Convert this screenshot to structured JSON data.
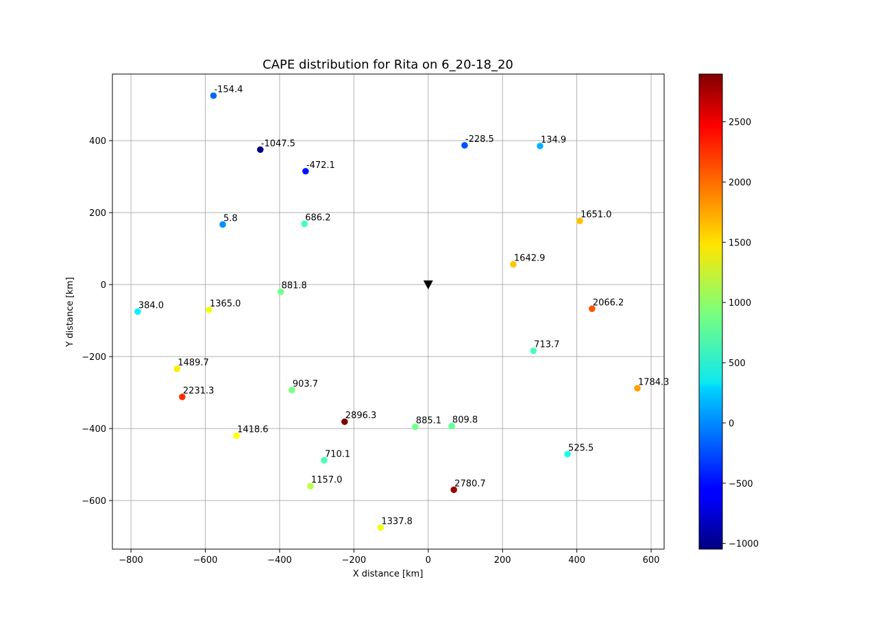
{
  "chart_data": {
    "type": "scatter",
    "title": "CAPE distribution for Rita on 6_20-18_20",
    "xlabel": "X distance [km]",
    "ylabel": "Y distance [km]",
    "xlim": [
      -850,
      635
    ],
    "ylim": [
      -735,
      585
    ],
    "xticks": [
      -800,
      -600,
      -400,
      -200,
      0,
      200,
      400,
      600
    ],
    "yticks": [
      -600,
      -400,
      -200,
      0,
      200,
      400
    ],
    "grid": true,
    "colormap": "jet",
    "colorbar": {
      "min": -1047.5,
      "max": 2896.3,
      "ticks": [
        -1000,
        -500,
        0,
        500,
        1000,
        1500,
        2000,
        2500
      ]
    },
    "center_marker": {
      "x": 0,
      "y": 0,
      "shape": "triangle-down",
      "color": "#000000"
    },
    "points": [
      {
        "x": -578,
        "y": 525,
        "value": -154.4,
        "label": "-154.4"
      },
      {
        "x": -452,
        "y": 375,
        "value": -1047.5,
        "label": "-1047.5"
      },
      {
        "x": -330,
        "y": 315,
        "value": -472.1,
        "label": "-472.1"
      },
      {
        "x": 98,
        "y": 387,
        "value": -228.5,
        "label": "-228.5"
      },
      {
        "x": 301,
        "y": 385,
        "value": 134.9,
        "label": "134.9"
      },
      {
        "x": -553,
        "y": 167,
        "value": 5.8,
        "label": "5.8"
      },
      {
        "x": -333,
        "y": 169,
        "value": 686.2,
        "label": "686.2"
      },
      {
        "x": 408,
        "y": 177,
        "value": 1651.0,
        "label": "1651.0"
      },
      {
        "x": 229,
        "y": 56,
        "value": 1642.9,
        "label": "1642.9"
      },
      {
        "x": -397,
        "y": -20,
        "value": 881.8,
        "label": "881.8"
      },
      {
        "x": -782,
        "y": -75,
        "value": 384.0,
        "label": "384.0"
      },
      {
        "x": -590,
        "y": -70,
        "value": 1365.0,
        "label": "1365.0"
      },
      {
        "x": 441,
        "y": -67,
        "value": 2066.2,
        "label": "2066.2"
      },
      {
        "x": 283,
        "y": -184,
        "value": 713.7,
        "label": "713.7"
      },
      {
        "x": -676,
        "y": -234,
        "value": 1489.7,
        "label": "1489.7"
      },
      {
        "x": -662,
        "y": -312,
        "value": 2231.3,
        "label": "2231.3"
      },
      {
        "x": -367,
        "y": -293,
        "value": 903.7,
        "label": "903.7"
      },
      {
        "x": 563,
        "y": -288,
        "value": 1784.3,
        "label": "1784.3"
      },
      {
        "x": -225,
        "y": -381,
        "value": 2896.3,
        "label": "2896.3"
      },
      {
        "x": -35,
        "y": -395,
        "value": 885.1,
        "label": "885.1"
      },
      {
        "x": 63,
        "y": -393,
        "value": 809.8,
        "label": "809.8"
      },
      {
        "x": -516,
        "y": -420,
        "value": 1418.6,
        "label": "1418.6"
      },
      {
        "x": 375,
        "y": -471,
        "value": 525.5,
        "label": "525.5"
      },
      {
        "x": -280,
        "y": -488,
        "value": 710.1,
        "label": "710.1"
      },
      {
        "x": -317,
        "y": -560,
        "value": 1157.0,
        "label": "1157.0"
      },
      {
        "x": 69,
        "y": -570,
        "value": 2780.7,
        "label": "2780.7"
      },
      {
        "x": -128,
        "y": -675,
        "value": 1337.8,
        "label": "1337.8"
      }
    ]
  }
}
